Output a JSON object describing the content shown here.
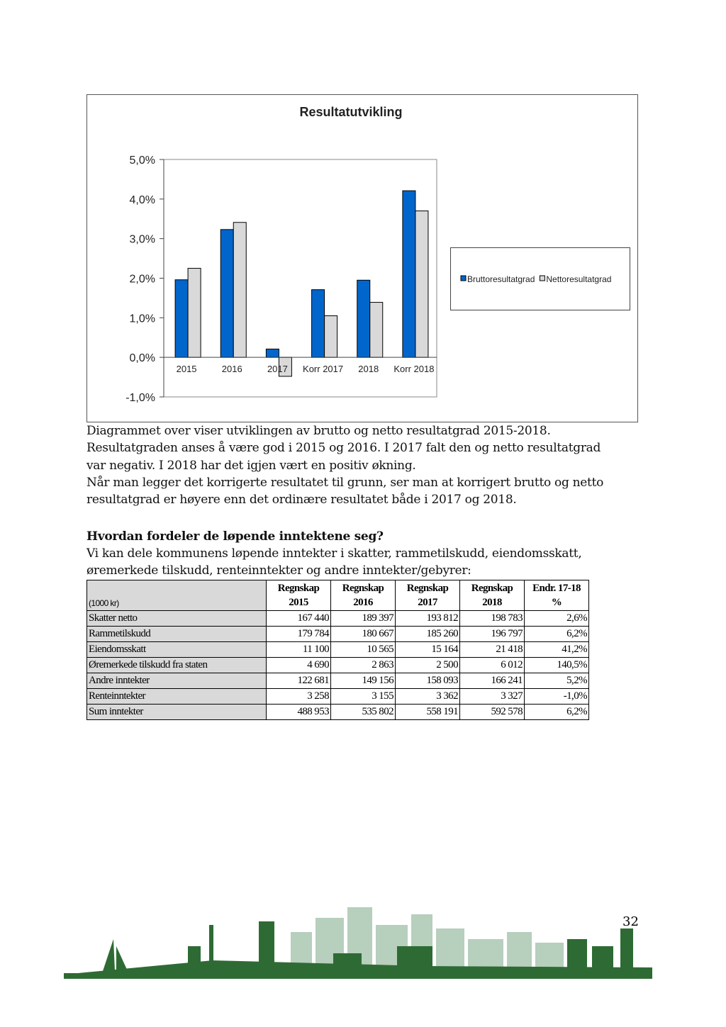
{
  "chart_data": {
    "type": "bar",
    "title": "Resultatutvikling",
    "categories": [
      "2015",
      "2016",
      "2017",
      "Korr 2017",
      "2018",
      "Korr 2018"
    ],
    "series": [
      {
        "name": "Bruttoresultatgrad",
        "color": "#0066cc",
        "values": [
          1.96,
          3.23,
          0.21,
          1.71,
          1.95,
          4.21
        ]
      },
      {
        "name": "Nettoresultatgrad",
        "color": "#d9d9d9",
        "values": [
          2.25,
          3.41,
          -0.48,
          1.05,
          1.39,
          3.7
        ]
      }
    ],
    "ylim": [
      -1,
      5
    ],
    "yticks": [
      {
        "value": -1,
        "label": "-1,0%"
      },
      {
        "value": 0,
        "label": "0,0%"
      },
      {
        "value": 1,
        "label": "1,0%"
      },
      {
        "value": 2,
        "label": "2,0%"
      },
      {
        "value": 3,
        "label": "3,0%"
      },
      {
        "value": 4,
        "label": "4,0%"
      },
      {
        "value": 5,
        "label": "5,0%"
      }
    ],
    "legend": "right"
  },
  "paragraphs": [
    [
      "Diagrammet over viser utviklingen av brutto og netto resultatgrad 2015-2018.",
      "Resultatgraden anses å være god i 2015 og 2016. I 2017 falt den og netto resultatgrad",
      "var negativ. I 2018 har det igjen vært en positiv økning.",
      "Når man legger det korrigerte resultatet til grunn, ser man at korrigert brutto og netto",
      "resultatgrad er høyere enn det ordinære resultatet både i 2017 og 2018."
    ]
  ],
  "heading": "Hvordan fordeler de løpende inntektene seg?",
  "intro": [
    "Vi kan dele kommunens løpende inntekter i skatter, rammetilskudd, eiendomsskatt,",
    "øremerkede tilskudd, renteinntekter og andre inntekter/gebyrer:"
  ],
  "table": {
    "unit": "(1000 kr)",
    "header": [
      [
        "Regnskap",
        "2015"
      ],
      [
        "Regnskap",
        "2016"
      ],
      [
        "Regnskap",
        "2017"
      ],
      [
        "Regnskap",
        "2018"
      ],
      [
        "Endr. 17-18",
        "%"
      ]
    ],
    "rows": [
      [
        "Skatter netto",
        "167 440",
        "189 397",
        "193 812",
        "198 783",
        "2,6%"
      ],
      [
        "Rammetilskudd",
        "179 784",
        "180 667",
        "185 260",
        "196 797",
        "6,2%"
      ],
      [
        "Eiendomsskatt",
        "11 100",
        "10 565",
        "15 164",
        "21 418",
        "41,2%"
      ],
      [
        "Øremerkede tilskudd fra staten",
        "4 690",
        "2 863",
        "2 500",
        "6 012",
        "140,5%"
      ],
      [
        "Andre inntekter",
        "122 681",
        "149 156",
        "158 093",
        "166 241",
        "5,2%"
      ],
      [
        "Renteinntekter",
        "3 258",
        "3 155",
        "3 362",
        "3 327",
        "-1,0%"
      ],
      [
        "Sum inntekter",
        "488 953",
        "535 802",
        "558 191",
        "592 578",
        "6,2%"
      ]
    ]
  },
  "page_number": "32"
}
